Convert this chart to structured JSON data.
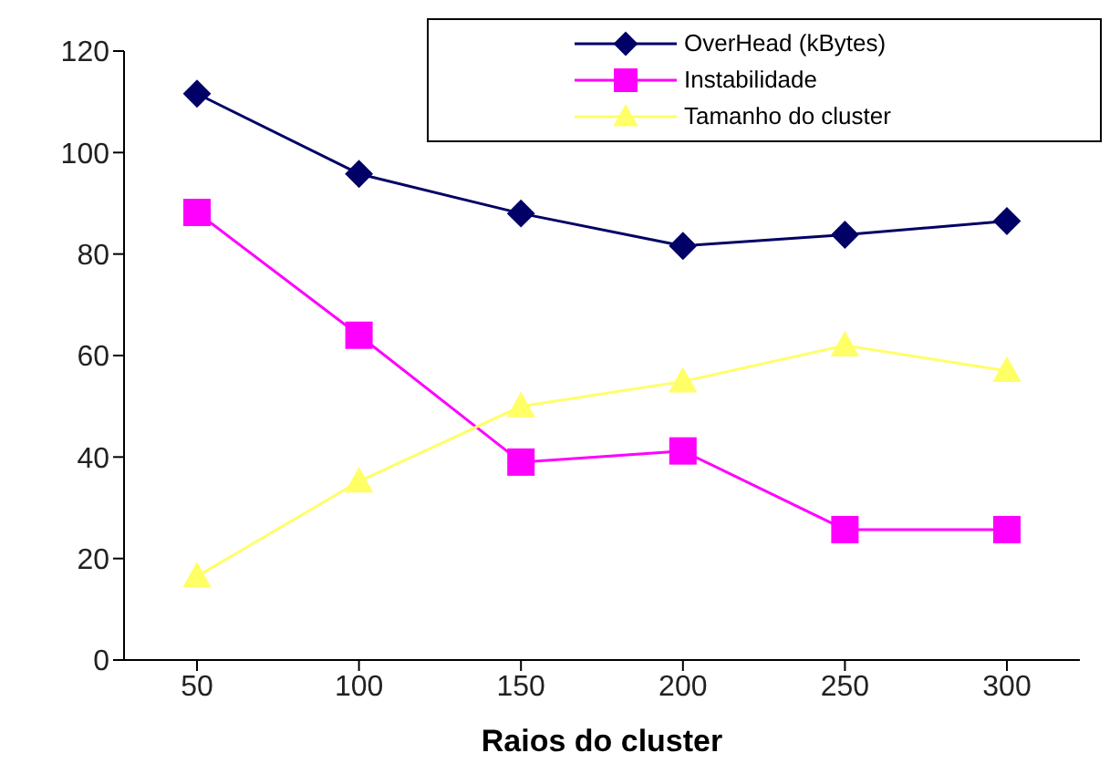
{
  "chart_data": {
    "type": "line",
    "xlabel": "Raios do cluster",
    "categories": [
      "50",
      "100",
      "150",
      "200",
      "250",
      "300"
    ],
    "series": [
      {
        "name": "OverHead (kBytes)",
        "color": "#000066",
        "marker": "diamond",
        "values": [
          111.6,
          95.8,
          88,
          81.6,
          83.8,
          86.5
        ]
      },
      {
        "name": "Instabilidade",
        "color": "#ff00ff",
        "marker": "square",
        "values": [
          88.2,
          64,
          39,
          41.2,
          25.7,
          25.7
        ]
      },
      {
        "name": "Tamanho do cluster",
        "color": "#ffff66",
        "marker": "triangle",
        "values": [
          16.5,
          35.2,
          50,
          54.9,
          62,
          57
        ]
      }
    ],
    "ylim": [
      0,
      120
    ],
    "yticks": [
      0,
      20,
      40,
      60,
      80,
      100,
      120
    ],
    "grid": false,
    "legend": "top right"
  }
}
